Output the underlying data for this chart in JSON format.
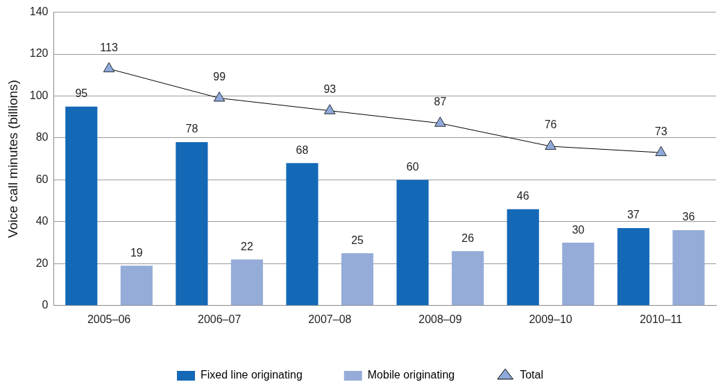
{
  "chart_data": {
    "type": "bar",
    "ylabel": "Voice call minutes (billions)",
    "categories": [
      "2005–06",
      "2006–07",
      "2007–08",
      "2008–09",
      "2009–10",
      "2010–11"
    ],
    "series": [
      {
        "name": "Fixed line originating",
        "color": "#1469b7",
        "values": [
          95,
          78,
          68,
          60,
          46,
          37
        ]
      },
      {
        "name": "Mobile originating",
        "color": "#95acd8",
        "values": [
          19,
          22,
          25,
          26,
          30,
          36
        ]
      },
      {
        "name": "Total",
        "type": "line",
        "color": "#8fa9d9",
        "values": [
          113,
          99,
          93,
          87,
          76,
          73
        ]
      }
    ],
    "ylim": [
      0,
      140
    ],
    "yticks": [
      0,
      20,
      40,
      60,
      80,
      100,
      120,
      140
    ],
    "grid": "y",
    "legend": "bottom",
    "marker": "triangle",
    "line_style": "solid",
    "data_labels": true
  }
}
